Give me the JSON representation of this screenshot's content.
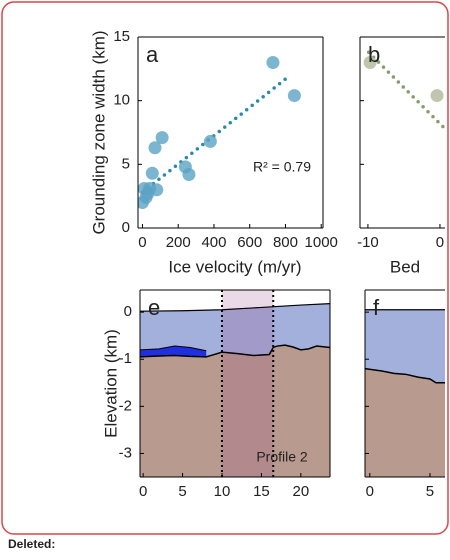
{
  "chart_data": [
    {
      "type": "scatter",
      "label": "a",
      "xlabel": "Ice velocity (m/yr)",
      "ylabel": "Grounding zone width (km)",
      "xlim": [
        -25,
        1010
      ],
      "ylim": [
        0,
        15
      ],
      "xticks": [
        0,
        200,
        400,
        600,
        800,
        1000
      ],
      "yticks": [
        0,
        5,
        10,
        15
      ],
      "x": [
        10,
        40,
        20,
        0,
        30,
        55,
        80,
        70,
        110,
        240,
        260,
        380,
        730,
        850
      ],
      "values": [
        3.1,
        3.1,
        2.4,
        2.0,
        2.7,
        4.3,
        3.0,
        6.3,
        7.1,
        4.8,
        4.2,
        6.8,
        13.0,
        10.4
      ],
      "color": "#5ba3c4",
      "trend": {
        "x": [
          0,
          800
        ],
        "values": [
          2.8,
          11.7
        ],
        "color": "#2b8aa8"
      },
      "annotation": "R² = 0.79"
    },
    {
      "type": "scatter",
      "label": "b",
      "xlabel": "Bed",
      "xlim": [
        -11.1,
        0.7
      ],
      "ylim": [
        0,
        15
      ],
      "xticks": [
        -10,
        0
      ],
      "yticks": [
        0,
        5,
        10,
        15
      ],
      "x": [
        -9.7,
        -0.4
      ],
      "values": [
        13.0,
        10.4
      ],
      "color": "#b0b89a",
      "trend": {
        "x": [
          -9.9,
          0.7
        ],
        "values": [
          13.8,
          7.8
        ],
        "color": "#8a9a70"
      }
    },
    {
      "type": "profile",
      "label": "e",
      "ylabel": "Elevation (km)",
      "annotation": "Profile   2",
      "xlim": [
        -0.4,
        23.7
      ],
      "ylim": [
        -3.5,
        0.47
      ],
      "xticks": [
        0,
        5,
        10,
        15,
        20
      ],
      "yticks": [
        0,
        -1,
        -2,
        -3
      ],
      "vlines": [
        10,
        16.5
      ],
      "surface": {
        "x": [
          -0.4,
          5,
          10,
          15,
          20,
          23.7
        ],
        "values": [
          0.02,
          0.03,
          0.05,
          0.1,
          0.15,
          0.18
        ]
      },
      "bed": {
        "x": [
          -0.4,
          2,
          4,
          6,
          8,
          9,
          10,
          12,
          14,
          16,
          16.5,
          17,
          18,
          19,
          20,
          21,
          22,
          23.7
        ],
        "values": [
          -0.95,
          -0.93,
          -0.92,
          -0.94,
          -0.95,
          -0.9,
          -0.85,
          -0.88,
          -0.92,
          -0.9,
          -0.75,
          -0.72,
          -0.7,
          -0.74,
          -0.8,
          -0.78,
          -0.72,
          -0.75
        ]
      },
      "water": {
        "x": [
          -0.4,
          2,
          4,
          6,
          8
        ],
        "values": [
          -0.8,
          -0.78,
          -0.72,
          -0.75,
          -0.82
        ]
      },
      "colors": {
        "ice": "#a3b0dc",
        "water": "#2030e0",
        "bed": "#b89a8e",
        "shade": "#a0508c"
      }
    },
    {
      "type": "profile",
      "label": "f",
      "xlim": [
        -0.4,
        6.25
      ],
      "ylim": [
        -3.5,
        0.47
      ],
      "xticks": [
        0,
        5
      ],
      "yticks": [
        0,
        -1,
        -2,
        -3
      ],
      "surface": {
        "x": [
          -0.4,
          6.25
        ],
        "values": [
          0.05,
          0.05
        ]
      },
      "bed": {
        "x": [
          -0.4,
          1,
          2,
          3,
          4,
          5,
          5.5,
          6.25
        ],
        "values": [
          -1.2,
          -1.25,
          -1.3,
          -1.32,
          -1.38,
          -1.42,
          -1.5,
          -1.5
        ]
      },
      "colors": {
        "ice": "#a3b0dc",
        "bed": "#b89a8e"
      }
    }
  ],
  "footer_label": "Deleted:"
}
